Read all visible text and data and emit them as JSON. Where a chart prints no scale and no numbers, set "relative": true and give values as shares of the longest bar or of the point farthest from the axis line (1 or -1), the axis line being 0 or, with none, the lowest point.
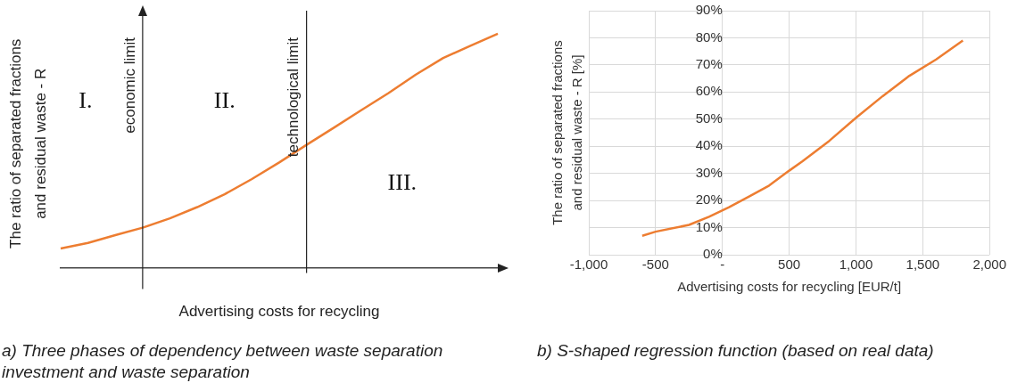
{
  "chart_data": [
    {
      "type": "line",
      "relative": true,
      "color": "#ed7d31",
      "grid": false,
      "categories": [
        null,
        null,
        null,
        null,
        null,
        null,
        null,
        null,
        null,
        null,
        null,
        null,
        null,
        null,
        null,
        null,
        null
      ],
      "values": [
        0.082,
        0.106,
        0.139,
        0.171,
        0.211,
        0.259,
        0.314,
        0.379,
        0.45,
        0.525,
        0.598,
        0.673,
        0.746,
        0.825,
        0.896,
        0.948,
        1.0
      ],
      "xlabel": "Advertising costs for recycling",
      "ylabel": "The ratio of separated fractions\nand residual waste - R",
      "annotations": [
        "economic limit",
        "technological limit",
        "I.",
        "II.",
        "III.",
        "a) Three phases of dependency between waste separation investment and waste separation"
      ]
    },
    {
      "type": "line",
      "color": "#ed7d31",
      "grid": true,
      "x": [
        -600,
        -500,
        -250,
        -100,
        50,
        200,
        350,
        500,
        600,
        800,
        1000,
        1200,
        1400,
        1600,
        1800
      ],
      "values": [
        7,
        8.5,
        11,
        14,
        17.5,
        21.5,
        25.5,
        31,
        34.5,
        42,
        50.5,
        58.5,
        66,
        72,
        79
      ],
      "xlim": [
        -1000,
        2000
      ],
      "xticks": [
        {
          "value": -1000,
          "label": "-1,000"
        },
        -500,
        {
          "value": 0,
          "label": "-"
        },
        500,
        {
          "value": 1000,
          "label": "1,000"
        },
        {
          "value": 1500,
          "label": "1,500"
        },
        {
          "value": 2000,
          "label": "2,000"
        }
      ],
      "ylim": [
        0,
        90
      ],
      "yticks": [
        {
          "value": 0,
          "label": "0%"
        },
        {
          "value": 10,
          "label": "10%"
        },
        {
          "value": 20,
          "label": "20%"
        },
        {
          "value": 30,
          "label": "30%"
        },
        {
          "value": 40,
          "label": "40%"
        },
        {
          "value": 50,
          "label": "50%"
        },
        {
          "value": 60,
          "label": "60%"
        },
        {
          "value": 70,
          "label": "70%"
        },
        {
          "value": 80,
          "label": "80%"
        },
        {
          "value": 90,
          "label": "90%"
        }
      ],
      "xlabel": "Advertising costs for recycling [EUR/t]",
      "ylabel": "The ratio of separated fractions\nand residual waste - R [%]",
      "annotations": [
        "b) S-shaped regression function (based on real data)"
      ]
    }
  ]
}
